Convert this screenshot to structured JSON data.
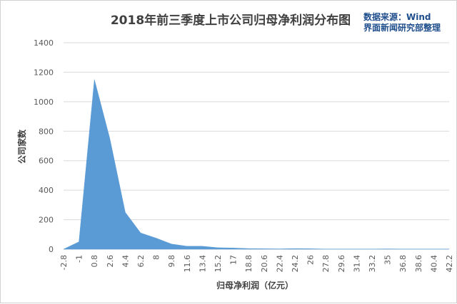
{
  "chart_data": {
    "type": "area",
    "title": "2018年前三季度上市公司归母净利润分布图",
    "source_lines": [
      "数据来源：Wind",
      "界面新闻研究部整理"
    ],
    "xlabel": "归母净利润（亿元）",
    "ylabel": "公司家数",
    "ylim": [
      0,
      1400
    ],
    "yticks": [
      0,
      200,
      400,
      600,
      800,
      1000,
      1200,
      1400
    ],
    "xticks": [
      "-2.8",
      "-1",
      "0.8",
      "2.6",
      "4.4",
      "6.2",
      "8",
      "9.8",
      "11.6",
      "13.4",
      "15.2",
      "17",
      "18.8",
      "20.6",
      "22.4",
      "24.2",
      "26",
      "27.8",
      "29.6",
      "31.4",
      "33.2",
      "35",
      "36.8",
      "38.6",
      "40.4",
      "42.2"
    ],
    "grid": true,
    "legend": "none",
    "color": "#5b9bd5",
    "series": [
      {
        "values": [
          0,
          50,
          1150,
          750,
          250,
          110,
          75,
          35,
          20,
          20,
          10,
          8,
          4,
          3,
          2,
          4,
          3,
          1,
          1,
          1,
          1,
          2,
          1,
          1,
          1,
          1
        ]
      }
    ]
  }
}
